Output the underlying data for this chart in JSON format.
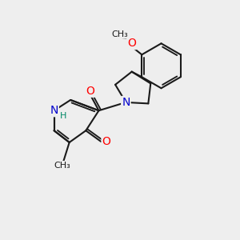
{
  "bg_color": "#eeeeee",
  "bond_color": "#1a1a1a",
  "bond_width": 1.5,
  "atom_colors": {
    "O": "#ff0000",
    "N": "#0000cc",
    "H": "#008866"
  },
  "font_size_atom": 10,
  "font_size_small": 8,
  "font_size_methyl": 8
}
